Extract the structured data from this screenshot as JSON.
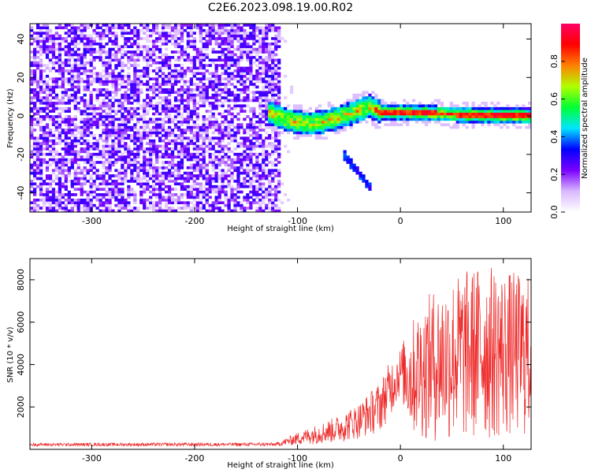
{
  "page": {
    "title": "C2E6.2023.098.19.00.R02"
  },
  "chart_data": [
    {
      "type": "heatmap",
      "title": "C2E6.2023.098.19.00.R02",
      "xlabel": "Height of straight line (km)",
      "ylabel": "Frequency (Hz)",
      "xlim": [
        -360,
        127
      ],
      "ylim": [
        -50,
        48
      ],
      "x_ticks": [
        -300,
        -200,
        -100,
        0,
        100
      ],
      "x_tick_labels": [
        "-300",
        "-200",
        "-100",
        "0",
        "100"
      ],
      "y_ticks": [
        -40,
        -20,
        0,
        20,
        40
      ],
      "y_tick_labels": [
        "-40",
        "-20",
        "0",
        "20",
        "40"
      ],
      "colorbar": {
        "label": "Normalized spectral amplitude",
        "range": [
          0,
          1
        ],
        "ticks": [
          0.0,
          0.2,
          0.4,
          0.6,
          0.8
        ],
        "tick_labels": [
          "0.0",
          "0.2",
          "0.4",
          "0.6",
          "0.8"
        ],
        "colors": [
          "#ffffff",
          "#d9b8ff",
          "#7a00ff",
          "#0000ff",
          "#00e5ff",
          "#00ff33",
          "#b0ff00",
          "#ff8000",
          "#ff0000",
          "#ff0066"
        ]
      },
      "description_values": {
        "noise_region_x": [
          -360,
          -115
        ],
        "noise_level": [
          0.05,
          0.3
        ],
        "signal_track": {
          "x": [
            -130,
            -110,
            -90,
            -75,
            -60,
            -45,
            -30,
            -20,
            0,
            50,
            100,
            127
          ],
          "freq": [
            2,
            -2,
            -4,
            -3,
            -1,
            2,
            5,
            2,
            2,
            1,
            0,
            0
          ]
        },
        "branch": {
          "x": [
            -55,
            -30
          ],
          "freq": [
            -20,
            -37
          ]
        }
      }
    },
    {
      "type": "line",
      "xlabel": "Height of straight line (km)",
      "ylabel": "SNR (10 * v/v)",
      "xlim": [
        -360,
        127
      ],
      "ylim": [
        0,
        9000
      ],
      "x_ticks": [
        -300,
        -200,
        -100,
        0,
        100
      ],
      "x_tick_labels": [
        "-300",
        "-200",
        "-100",
        "0",
        "100"
      ],
      "y_ticks": [
        2000,
        4000,
        6000,
        8000
      ],
      "y_tick_labels": [
        "2000",
        "4000",
        "6000",
        "8000"
      ],
      "series": [
        {
          "name": "SNR",
          "color": "#ee2a2a",
          "envelope_x": [
            -360,
            -120,
            -100,
            -80,
            -60,
            -40,
            -20,
            -10,
            0,
            10,
            30,
            50,
            80,
            100,
            127
          ],
          "envelope_upper": [
            300,
            320,
            800,
            1200,
            1600,
            2200,
            3200,
            4200,
            4800,
            6000,
            7500,
            8200,
            8800,
            8500,
            8200
          ],
          "envelope_lower": [
            150,
            150,
            200,
            250,
            300,
            500,
            800,
            1500,
            2500,
            600,
            300,
            200,
            300,
            400,
            500
          ]
        }
      ]
    }
  ]
}
